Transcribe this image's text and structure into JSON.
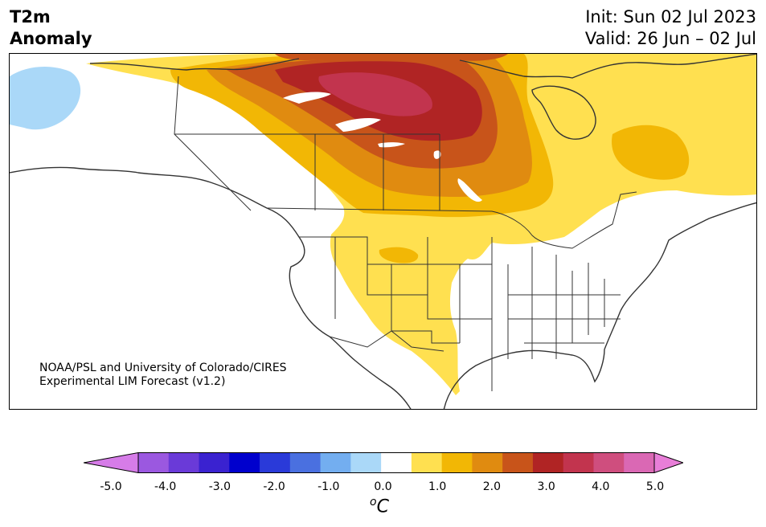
{
  "title": {
    "line1": "T2m",
    "line2": "Anomaly"
  },
  "header_right": {
    "init": "Init: Sun 02 Jul 2023",
    "valid": "Valid: 26 Jun – 02 Jul"
  },
  "credit": {
    "line1": "NOAA/PSL and University of Colorado/CIRES",
    "line2": "Experimental LIM Forecast (v1.2)"
  },
  "colorbar": {
    "unit_base": "C",
    "unit_sup": "o",
    "ticks": [
      "-5.0",
      "-4.0",
      "-3.0",
      "-2.0",
      "-1.0",
      "0.0",
      "1.0",
      "2.0",
      "3.0",
      "4.0",
      "5.0"
    ],
    "levels": [
      -5.0,
      -4.5,
      -4.0,
      -3.5,
      -3.0,
      -2.5,
      -2.0,
      -1.5,
      -1.0,
      -0.5,
      0.5,
      1.0,
      1.5,
      2.0,
      2.5,
      3.0,
      3.5,
      4.0,
      4.5,
      5.0
    ],
    "colors": [
      "#d67ce8",
      "#9b58e0",
      "#6a3ad8",
      "#3a22d0",
      "#0000cd",
      "#2a3ad9",
      "#4a70e0",
      "#73aef0",
      "#aad8f8",
      "#ffffff",
      "#ffe050",
      "#f2b705",
      "#e08b10",
      "#c8541a",
      "#b02424",
      "#c2344e",
      "#cf4e7e",
      "#da68b4",
      "#e87ed8"
    ]
  },
  "anomaly_colors": {
    "cold_light": "#aad8f8",
    "warm_1": "#ffe050",
    "warm_2": "#f2b705",
    "warm_3": "#e08b10",
    "warm_4": "#c8541a",
    "warm_5": "#b02424",
    "warm_6": "#c2344e"
  }
}
